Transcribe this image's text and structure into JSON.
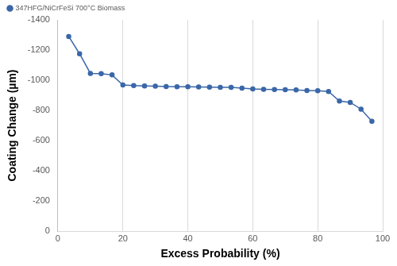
{
  "chart_data": {
    "type": "line",
    "x_label": "Excess Probability (%)",
    "y_label": "Coating Change (µm)",
    "x": [
      3.33,
      6.67,
      10,
      13.33,
      16.67,
      20,
      23.33,
      26.67,
      30,
      33.33,
      36.67,
      40,
      43.33,
      46.67,
      50,
      53.33,
      56.67,
      60,
      63.33,
      66.67,
      70,
      73.33,
      76.67,
      80,
      83.33,
      86.67,
      90,
      93.33,
      96.67
    ],
    "series": [
      {
        "name": "347HFG/NiCrFeSi 700°C Biomass",
        "color": "#3a67a8",
        "marker": "circle",
        "line_style": "solid",
        "values": [
          -1290,
          -1175,
          -1045,
          -1043,
          -1035,
          -968,
          -965,
          -962,
          -960,
          -958,
          -957,
          -956,
          -955,
          -954,
          -953,
          -952,
          -948,
          -942,
          -940,
          -938,
          -937,
          -935,
          -932,
          -930,
          -925,
          -862,
          -853,
          -808,
          -728
        ]
      }
    ],
    "xlim": [
      0,
      100
    ],
    "xticks": [
      0,
      20,
      40,
      60,
      80,
      100
    ],
    "ylim": [
      0,
      -1400
    ],
    "yticks": [
      0,
      -200,
      -400,
      -600,
      -800,
      -1000,
      -1200,
      -1400
    ],
    "grid": true,
    "legend": "top-left"
  }
}
